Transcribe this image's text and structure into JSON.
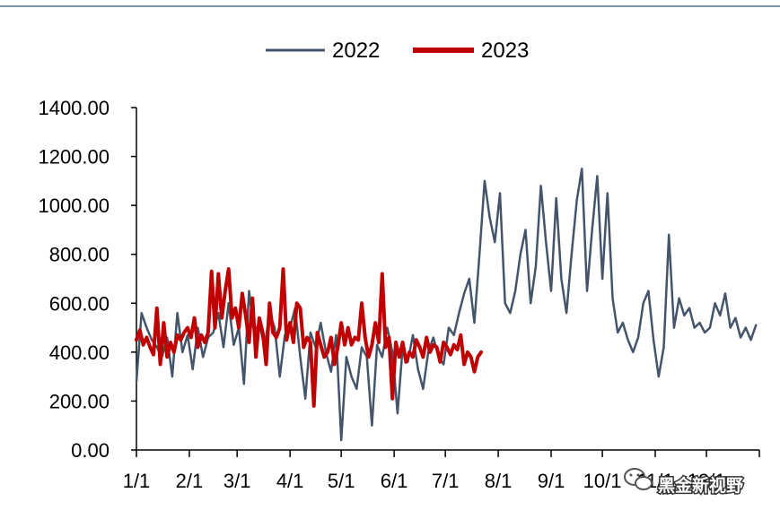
{
  "chart_data": {
    "type": "line",
    "title": "",
    "xlabel": "",
    "ylabel": "",
    "ylim": [
      0,
      1400
    ],
    "yticks": [
      "0.00",
      "200.00",
      "400.00",
      "600.00",
      "800.00",
      "1000.00",
      "1200.00",
      "1400.00"
    ],
    "x_tick_labels": [
      "1/1",
      "2/1",
      "3/1",
      "4/1",
      "5/1",
      "6/1",
      "7/1",
      "8/1",
      "9/1",
      "10/1",
      "11/1",
      "12/1"
    ],
    "x_tick_days": [
      0,
      31,
      59,
      90,
      120,
      151,
      181,
      212,
      243,
      273,
      304,
      334
    ],
    "x_range_days": [
      0,
      365
    ],
    "legend_position": "top-center",
    "series": [
      {
        "name": "2022",
        "color": "#44546a",
        "days": [
          0,
          3,
          6,
          9,
          12,
          15,
          18,
          21,
          24,
          27,
          30,
          33,
          36,
          39,
          42,
          45,
          48,
          51,
          54,
          57,
          60,
          63,
          66,
          69,
          72,
          75,
          78,
          81,
          84,
          87,
          90,
          93,
          96,
          99,
          102,
          105,
          108,
          111,
          114,
          117,
          120,
          123,
          126,
          129,
          132,
          135,
          138,
          141,
          144,
          147,
          150,
          153,
          156,
          159,
          162,
          165,
          168,
          171,
          174,
          177,
          180,
          183,
          186,
          189,
          192,
          195,
          198,
          201,
          204,
          207,
          210,
          213,
          216,
          219,
          222,
          225,
          228,
          231,
          234,
          237,
          240,
          243,
          246,
          249,
          252,
          255,
          258,
          261,
          264,
          267,
          270,
          273,
          276,
          279,
          282,
          285,
          288,
          291,
          294,
          297,
          300,
          303,
          306,
          309,
          312,
          315,
          318,
          321,
          324,
          327,
          330,
          333,
          336,
          339,
          342,
          345,
          348,
          351,
          354,
          357,
          360,
          363
        ],
        "values": [
          280,
          560,
          500,
          450,
          420,
          380,
          460,
          300,
          560,
          400,
          470,
          330,
          500,
          380,
          460,
          480,
          560,
          420,
          600,
          430,
          500,
          270,
          650,
          480,
          520,
          420,
          560,
          500,
          300,
          470,
          500,
          580,
          380,
          210,
          480,
          420,
          520,
          400,
          320,
          470,
          40,
          380,
          300,
          250,
          420,
          380,
          100,
          430,
          380,
          500,
          400,
          150,
          420,
          360,
          470,
          330,
          250,
          400,
          460,
          380,
          350,
          500,
          470,
          560,
          640,
          700,
          520,
          800,
          1100,
          950,
          850,
          1050,
          600,
          560,
          650,
          800,
          900,
          600,
          750,
          1080,
          850,
          650,
          1030,
          700,
          560,
          800,
          1020,
          1150,
          650,
          900,
          1120,
          700,
          1050,
          620,
          480,
          520,
          450,
          400,
          460,
          600,
          650,
          450,
          300,
          420,
          880,
          500,
          620,
          550,
          580,
          500,
          520,
          480,
          500,
          600,
          550,
          640,
          500,
          540,
          460,
          500,
          450,
          510
        ]
      },
      {
        "name": "2023",
        "color": "#c00000",
        "days": [
          0,
          2,
          4,
          6,
          8,
          10,
          12,
          14,
          16,
          18,
          20,
          22,
          24,
          26,
          28,
          30,
          32,
          34,
          36,
          38,
          40,
          42,
          44,
          46,
          48,
          50,
          52,
          54,
          56,
          58,
          60,
          62,
          64,
          66,
          68,
          70,
          72,
          74,
          76,
          78,
          80,
          82,
          84,
          86,
          88,
          90,
          92,
          94,
          96,
          98,
          100,
          102,
          104,
          106,
          108,
          110,
          112,
          114,
          116,
          118,
          120,
          122,
          124,
          126,
          128,
          130,
          132,
          134,
          136,
          138,
          140,
          142,
          144,
          146,
          148,
          150,
          152,
          154,
          156,
          158,
          160,
          162,
          164,
          166,
          168,
          170,
          172,
          174,
          176,
          178,
          180,
          182,
          184,
          186,
          188,
          190,
          192,
          194,
          196,
          198,
          200,
          202
        ],
        "values": [
          450,
          490,
          430,
          460,
          420,
          390,
          580,
          350,
          520,
          380,
          440,
          400,
          470,
          450,
          480,
          500,
          460,
          540,
          420,
          470,
          440,
          480,
          730,
          500,
          720,
          540,
          650,
          740,
          540,
          580,
          500,
          640,
          550,
          440,
          620,
          380,
          540,
          480,
          350,
          600,
          480,
          460,
          500,
          740,
          450,
          520,
          440,
          600,
          580,
          420,
          460,
          440,
          180,
          480,
          430,
          380,
          400,
          460,
          350,
          420,
          520,
          430,
          500,
          430,
          460,
          450,
          600,
          460,
          380,
          430,
          520,
          440,
          720,
          420,
          460,
          210,
          440,
          380,
          440,
          360,
          400,
          380,
          450,
          420,
          380,
          460,
          400,
          430,
          420,
          360,
          440,
          420,
          390,
          430,
          410,
          470,
          350,
          400,
          380,
          320,
          380,
          400
        ]
      }
    ]
  },
  "watermark": {
    "text": "黑金新视野"
  }
}
